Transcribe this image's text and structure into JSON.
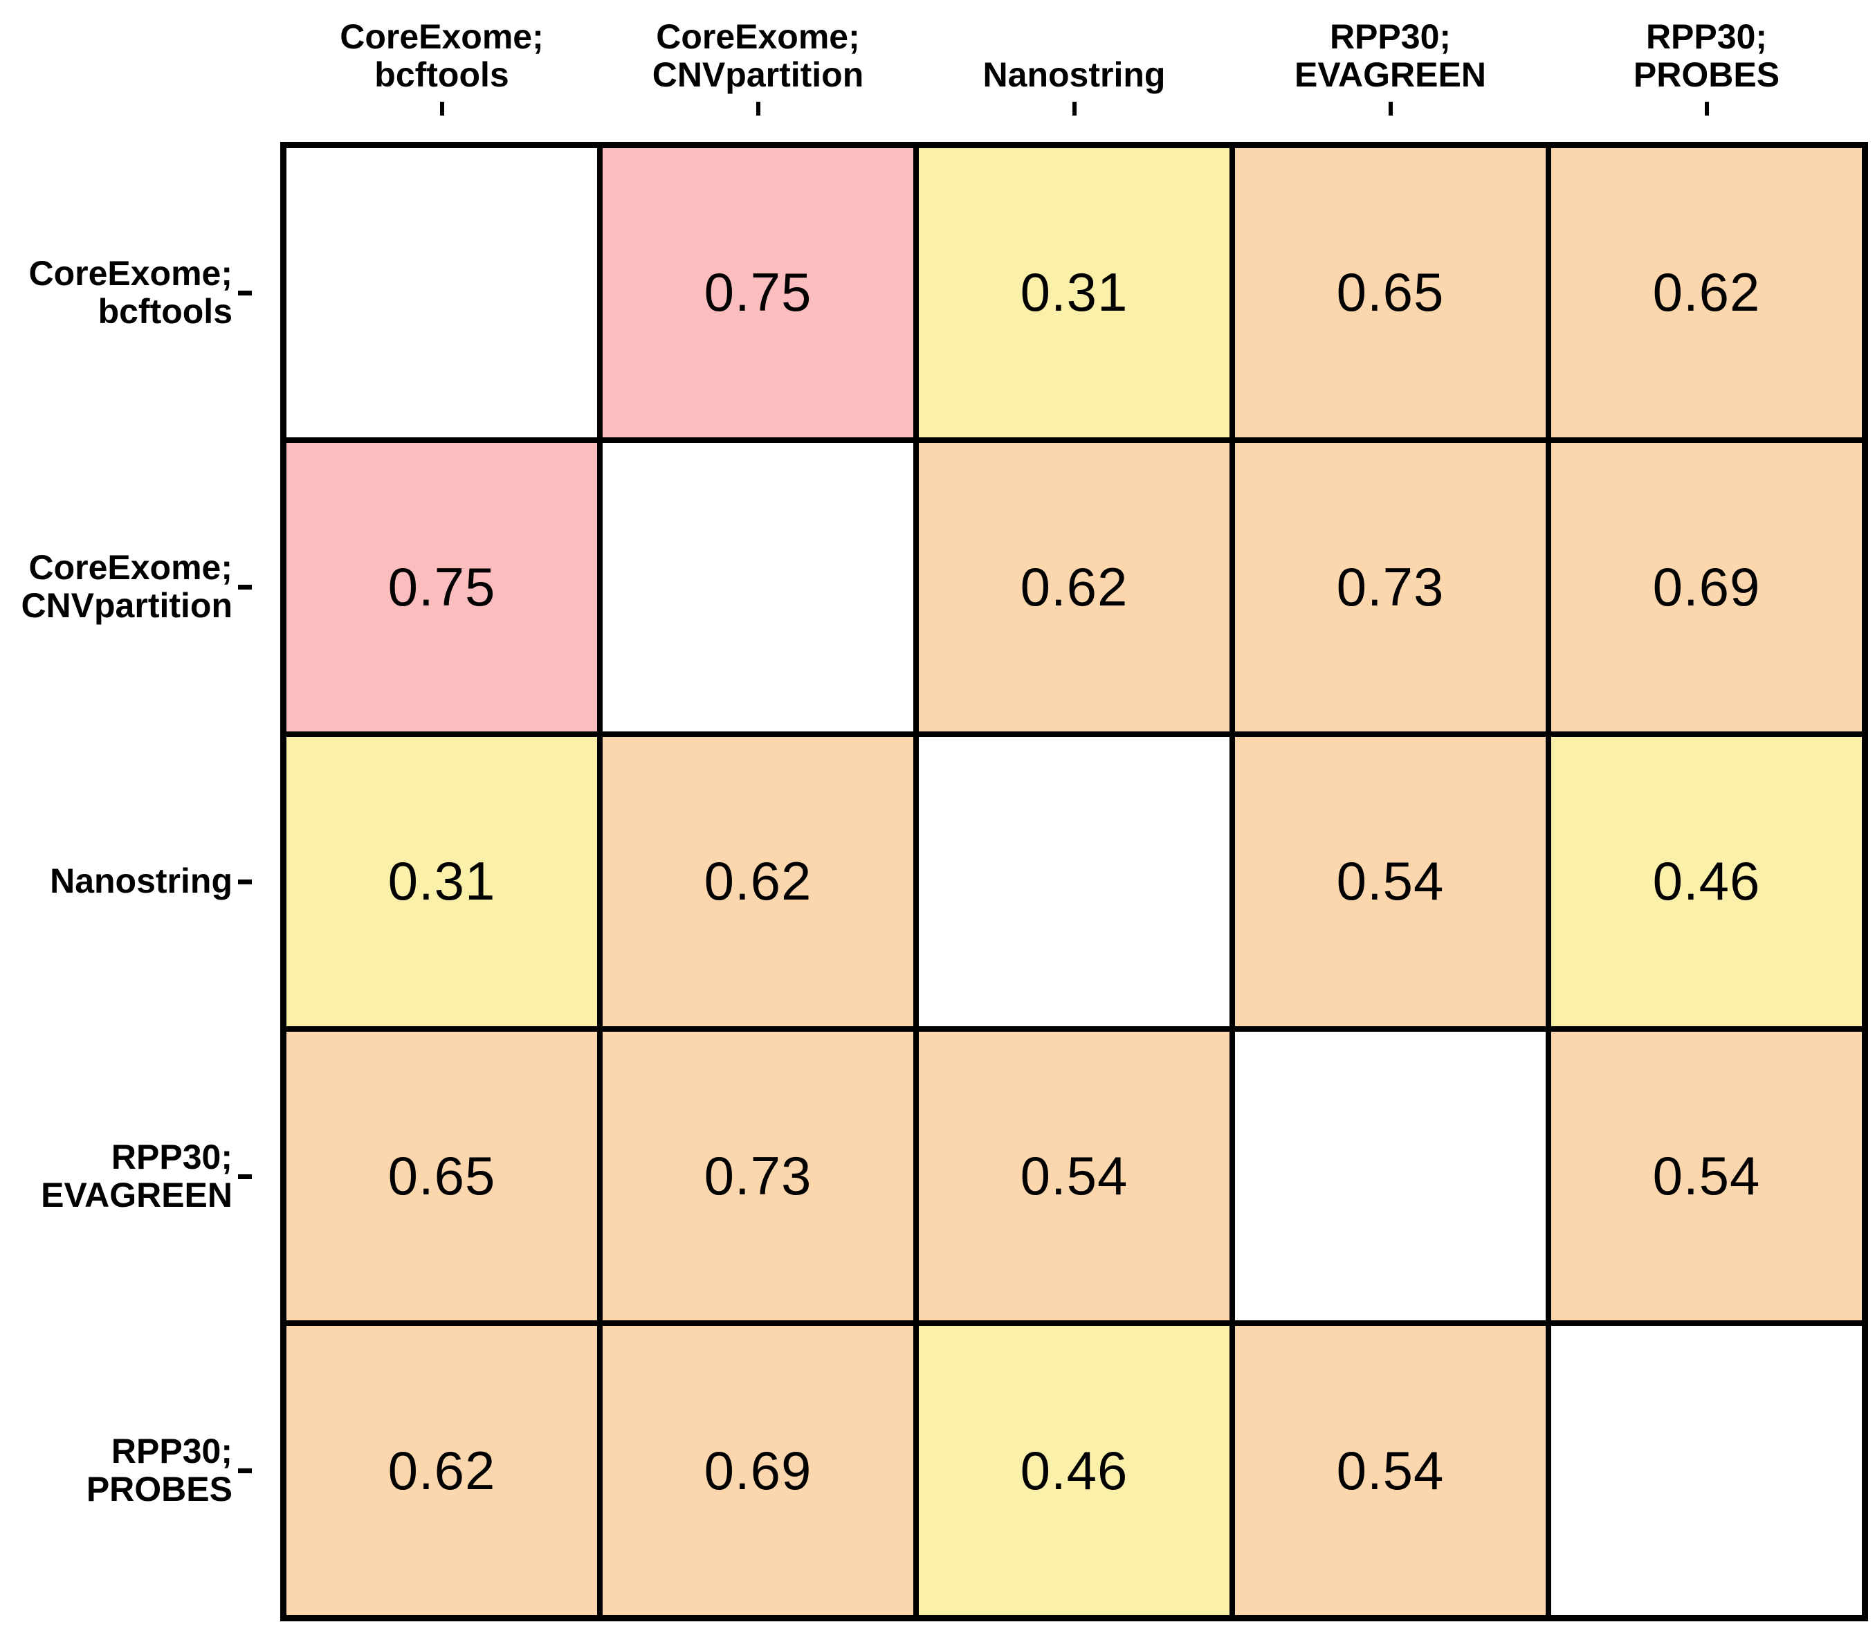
{
  "chart_data": {
    "type": "heatmap",
    "title": "",
    "xlabel": "",
    "ylabel": "",
    "legend": "none",
    "grid_on": true,
    "symmetric": true,
    "diagonal_blank": true,
    "categories": [
      {
        "label": "CoreExome; bcftools",
        "lines": [
          "CoreExome;",
          "bcftools"
        ]
      },
      {
        "label": "CoreExome; CNVpartition",
        "lines": [
          "CoreExome;",
          "CNVpartition"
        ]
      },
      {
        "label": "Nanostring",
        "lines": [
          "Nanostring"
        ]
      },
      {
        "label": "RPP30; EVAGREEN",
        "lines": [
          "RPP30;",
          "EVAGREEN"
        ]
      },
      {
        "label": "RPP30; PROBES",
        "lines": [
          "RPP30;",
          "PROBES"
        ]
      }
    ],
    "matrix": [
      [
        null,
        0.75,
        0.31,
        0.65,
        0.62
      ],
      [
        0.75,
        null,
        0.62,
        0.73,
        0.69
      ],
      [
        0.31,
        0.62,
        null,
        0.54,
        0.46
      ],
      [
        0.65,
        0.73,
        0.54,
        null,
        0.54
      ],
      [
        0.62,
        0.69,
        0.46,
        0.54,
        null
      ]
    ],
    "value_range": [
      0.31,
      0.75
    ],
    "color_thresholds": {
      "high_min": 0.75,
      "mid_min": 0.5
    },
    "palette": {
      "high": "#FBBDBE",
      "mid": "#FCD7AD",
      "low": "#FAF0AA",
      "diagonal": "#FFFFFF",
      "grid_line": "#000000",
      "text": "#000000"
    }
  }
}
